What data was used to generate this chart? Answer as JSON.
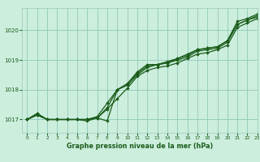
{
  "title": "Graphe pression niveau de la mer (hPa)",
  "xlim": [
    -0.5,
    23
  ],
  "ylim": [
    1016.55,
    1020.75
  ],
  "yticks": [
    1017,
    1018,
    1019,
    1020
  ],
  "xticks": [
    0,
    1,
    2,
    3,
    4,
    5,
    6,
    7,
    8,
    9,
    10,
    11,
    12,
    13,
    14,
    15,
    16,
    17,
    18,
    19,
    20,
    21,
    22,
    23
  ],
  "bg_color": "#cceedd",
  "grid_color": "#99ccbb",
  "line_color": "#1a5c1a",
  "marker_color": "#1a5c1a",
  "series": [
    [
      1017.0,
      1017.15,
      1017.0,
      1017.0,
      1017.0,
      1017.0,
      1017.0,
      1017.05,
      1017.35,
      1017.7,
      1018.05,
      1018.45,
      1018.65,
      1018.75,
      1018.8,
      1018.9,
      1019.05,
      1019.2,
      1019.25,
      1019.35,
      1019.5,
      1020.1,
      1020.25,
      1020.4
    ],
    [
      1017.0,
      1017.15,
      1017.0,
      1017.0,
      1017.0,
      1017.0,
      1017.0,
      1017.05,
      1017.4,
      1018.0,
      1018.15,
      1018.5,
      1018.75,
      1018.85,
      1018.9,
      1019.0,
      1019.1,
      1019.3,
      1019.35,
      1019.4,
      1019.6,
      1020.2,
      1020.35,
      1020.45
    ],
    [
      1017.0,
      1017.2,
      1017.0,
      1017.0,
      1017.0,
      1017.0,
      1017.0,
      1017.1,
      1017.55,
      1018.0,
      1018.2,
      1018.55,
      1018.8,
      1018.85,
      1018.9,
      1019.05,
      1019.15,
      1019.35,
      1019.4,
      1019.45,
      1019.65,
      1020.2,
      1020.35,
      1020.5
    ],
    [
      1017.0,
      1017.2,
      1017.0,
      1017.0,
      1017.0,
      1017.0,
      1016.95,
      1017.05,
      1016.95,
      1018.0,
      1018.2,
      1018.6,
      1018.85,
      1018.85,
      1018.95,
      1019.05,
      1019.2,
      1019.35,
      1019.4,
      1019.45,
      1019.65,
      1020.3,
      1020.4,
      1020.55
    ]
  ]
}
